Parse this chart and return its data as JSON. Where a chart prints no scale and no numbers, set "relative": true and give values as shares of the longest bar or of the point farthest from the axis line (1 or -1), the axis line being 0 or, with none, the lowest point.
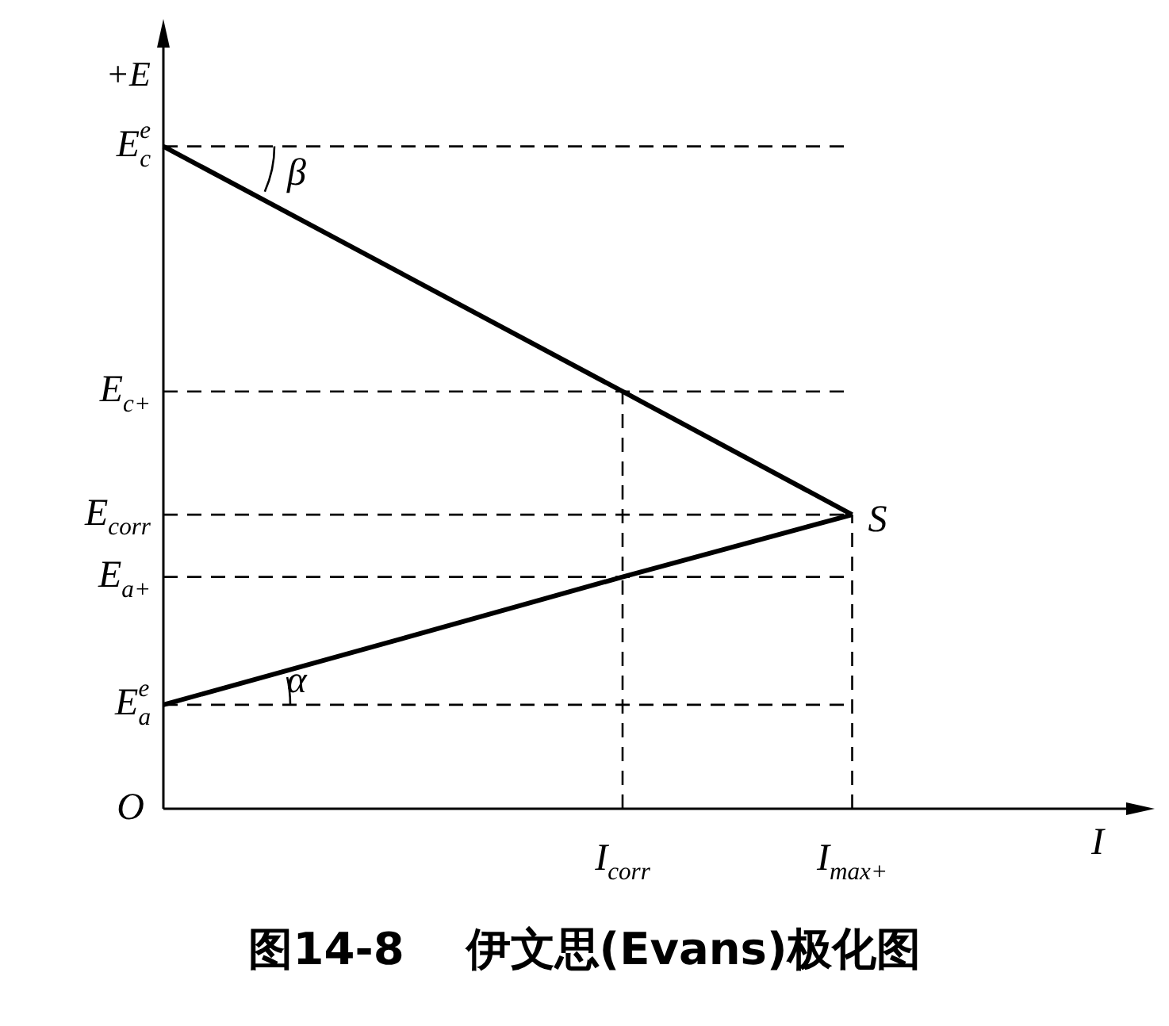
{
  "chart_data": {
    "type": "line",
    "relative": true,
    "title": "图14-8    伊文思(Evans)极化图",
    "xlabel": "I",
    "ylabel": "+E",
    "categories": [
      null,
      null,
      "I$_{corr}$",
      "I$_{max+}$",
      null
    ],
    "series": [
      {
        "color": "#000000",
        "values": [
          1,
          0.815,
          0.63,
          0.444,
          null
        ]
      },
      {
        "color": "#000000",
        "values": [
          0.157,
          0.253,
          0.35,
          0.444,
          null
        ]
      }
    ],
    "marker": "none",
    "line_style": "solid",
    "ref_lines": [
      {
        "axis": "y",
        "value": 1,
        "label": "E$_{c}$$^{e}$",
        "color": "#000000",
        "line_style": "dashed"
      },
      {
        "axis": "y",
        "value": 0.63,
        "label": "E$_{c+}$",
        "color": "#000000",
        "line_style": "dashed"
      },
      {
        "axis": "y",
        "value": 0.444,
        "label": "E$_{corr}$",
        "color": "#000000",
        "line_style": "dashed"
      },
      {
        "axis": "y",
        "value": 0.35,
        "label": "E$_{a+}$",
        "color": "#000000",
        "line_style": "dashed"
      },
      {
        "axis": "y",
        "value": 0.157,
        "label": "E$_{a}$$^{e}$",
        "color": "#000000",
        "line_style": "dashed"
      },
      {
        "axis": "x",
        "value": "I$_{corr}$",
        "color": "#000000",
        "line_style": "dashed"
      },
      {
        "axis": "x",
        "value": "I$_{max+}$",
        "color": "#000000",
        "line_style": "dashed"
      }
    ],
    "annotations": [
      "O",
      {
        "text": "S",
        "x": "I$_{max+}$",
        "y": 0.444
      },
      {
        "text": "β",
        "y": 1
      },
      {
        "text": "α",
        "y": 0.157
      }
    ]
  }
}
